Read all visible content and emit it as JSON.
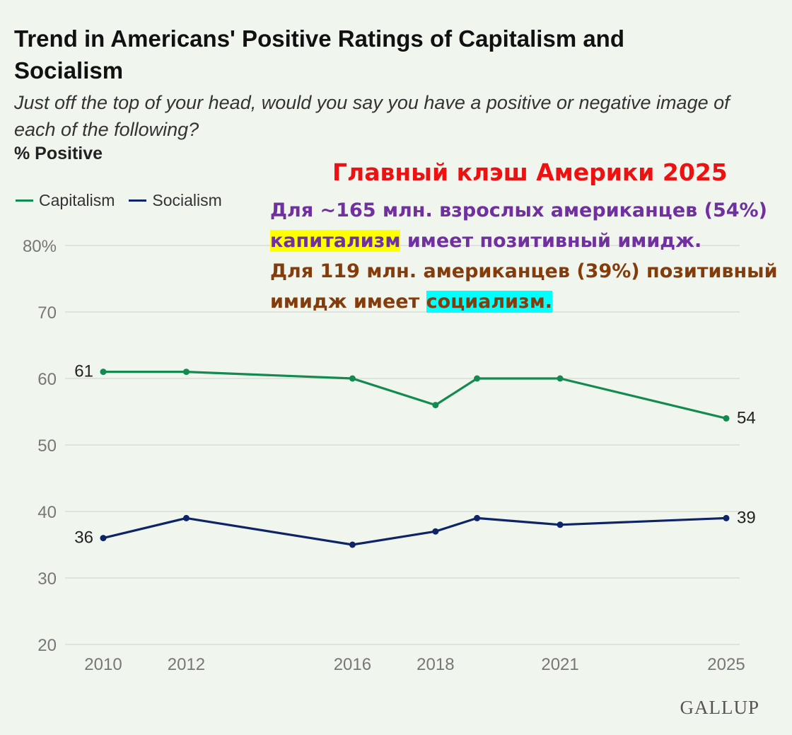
{
  "header": {
    "title": "Trend in Americans' Positive Ratings of Capitalism and Socialism",
    "subtitle": "Just off the top of your head, would you say you have a positive or negative image of each of the following?",
    "ylabel": "% Positive"
  },
  "legend": [
    {
      "name": "Capitalism",
      "color": "#138a4f"
    },
    {
      "name": "Socialism",
      "color": "#0e2466"
    }
  ],
  "chart_data": {
    "type": "line",
    "title": "Trend in Americans' Positive Ratings of Capitalism and Socialism",
    "ylabel": "% Positive",
    "ylim": [
      20,
      80
    ],
    "yticks": [
      20,
      30,
      40,
      50,
      60,
      70,
      80
    ],
    "ytick_labels": [
      "20",
      "30",
      "40",
      "50",
      "60",
      "70",
      "80%"
    ],
    "xlim": [
      2010,
      2025.5
    ],
    "xticks": [
      2010,
      2012,
      2016,
      2018,
      2021,
      2025
    ],
    "x": [
      2010,
      2012,
      2016,
      2018,
      2019,
      2021,
      2025
    ],
    "grid": true,
    "legend_position": "top-left",
    "series": [
      {
        "name": "Capitalism",
        "color": "#138a4f",
        "values": [
          61,
          61,
          60,
          56,
          60,
          60,
          54
        ],
        "start_label": "61",
        "end_label": "54"
      },
      {
        "name": "Socialism",
        "color": "#0e2466",
        "values": [
          36,
          39,
          35,
          37,
          39,
          38,
          39
        ],
        "start_label": "36",
        "end_label": "39"
      }
    ]
  },
  "annotation": {
    "title": "Главный клэш Америки 2025",
    "line1": "Для ~165 млн. взрослых американцев (54%)",
    "line2_highlight": "капитализм",
    "line2_rest": " имеет позитивный имидж.",
    "line3": "Для 119 млн. американцев (39%) позитивный",
    "line4_start": "имидж имеет ",
    "line4_highlight": "социализм."
  },
  "brand": {
    "logo": "GALLUP"
  }
}
